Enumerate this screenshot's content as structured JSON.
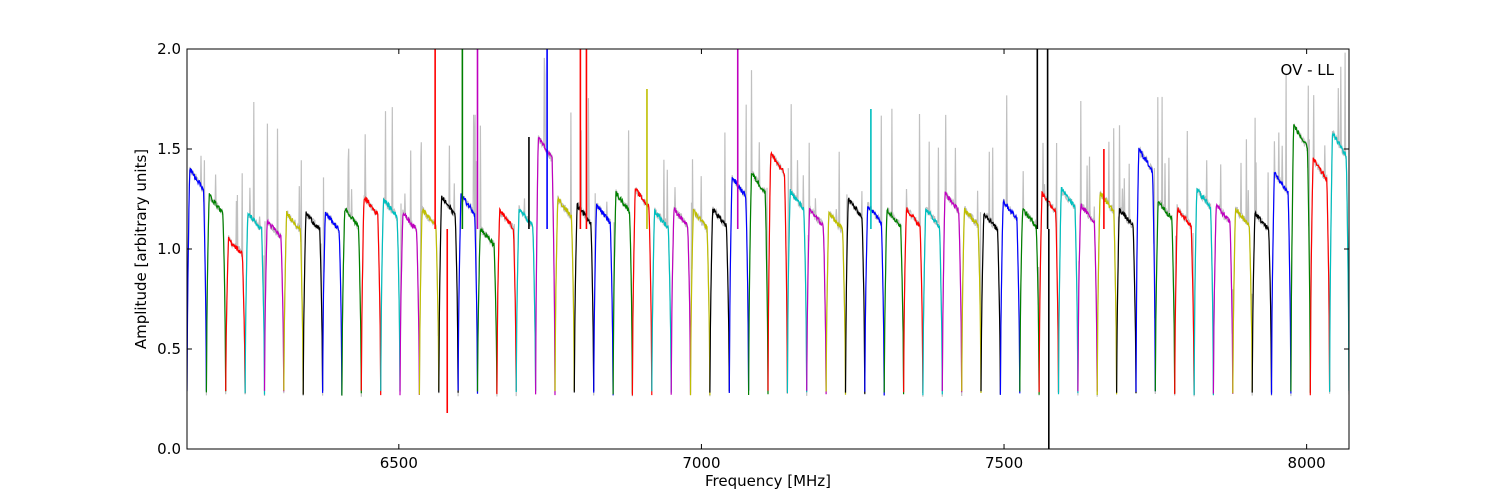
{
  "chart_data": {
    "type": "line",
    "title": "",
    "annotation": "OV - LL",
    "xlabel": "Frequency [MHz]",
    "ylabel": "Amplitude [arbitrary units]",
    "xlim": [
      6150,
      8070
    ],
    "ylim": [
      0.0,
      2.0
    ],
    "xticks": [
      6500,
      7000,
      7500,
      8000
    ],
    "xtick_labels": [
      "6500",
      "7000",
      "7500",
      "8000"
    ],
    "yticks": [
      0.0,
      0.5,
      1.0,
      1.5,
      2.0
    ],
    "ytick_labels": [
      "0.0",
      "0.5",
      "1.0",
      "1.5",
      "2.0"
    ],
    "grid": false,
    "legend": "none",
    "background_trace_color": "#c0c0c0",
    "channel_colors": [
      "#0000ff",
      "#008000",
      "#ff0000",
      "#00bfbf",
      "#bf00bf",
      "#bfbf00",
      "#000000"
    ],
    "channel_width_mhz": 32,
    "channel_start_mhz": 6150,
    "channel_count": 60,
    "channel_peaks": [
      1.4,
      1.27,
      1.05,
      1.18,
      1.14,
      1.18,
      1.18,
      1.18,
      1.2,
      1.26,
      1.25,
      1.18,
      1.2,
      1.26,
      1.27,
      1.1,
      1.19,
      1.2,
      1.56,
      1.25,
      1.22,
      1.22,
      1.28,
      1.3,
      1.19,
      1.2,
      1.19,
      1.2,
      1.36,
      1.38,
      1.48,
      1.29,
      1.2,
      1.18,
      1.25,
      1.22,
      1.2,
      1.2,
      1.2,
      1.28,
      1.2,
      1.18,
      1.24,
      1.2,
      1.28,
      1.3,
      1.22,
      1.28,
      1.2,
      1.5,
      1.24,
      1.2,
      1.3,
      1.22,
      1.2,
      1.18,
      1.38,
      1.62,
      1.45,
      1.58
    ],
    "spikes": [
      {
        "x": 6560,
        "y": 2.0,
        "color": "#ff0000"
      },
      {
        "x": 6580,
        "y": 0.18,
        "color": "#ff0000"
      },
      {
        "x": 6605,
        "y": 2.0,
        "color": "#008000"
      },
      {
        "x": 6630,
        "y": 2.0,
        "color": "#bf00bf"
      },
      {
        "x": 6715,
        "y": 1.56,
        "color": "#000000"
      },
      {
        "x": 6745,
        "y": 2.0,
        "color": "#0000ff"
      },
      {
        "x": 6800,
        "y": 2.0,
        "color": "#ff0000"
      },
      {
        "x": 6810,
        "y": 2.0,
        "color": "#ff0000"
      },
      {
        "x": 6910,
        "y": 1.8,
        "color": "#bfbf00"
      },
      {
        "x": 7060,
        "y": 2.0,
        "color": "#bf00bf"
      },
      {
        "x": 7280,
        "y": 1.7,
        "color": "#00bfbf"
      },
      {
        "x": 7555,
        "y": 2.0,
        "color": "#000000"
      },
      {
        "x": 7572,
        "y": 2.0,
        "color": "#000000"
      },
      {
        "x": 7574,
        "y": 0.0,
        "color": "#000000"
      },
      {
        "x": 7665,
        "y": 1.5,
        "color": "#ff0000"
      }
    ]
  }
}
